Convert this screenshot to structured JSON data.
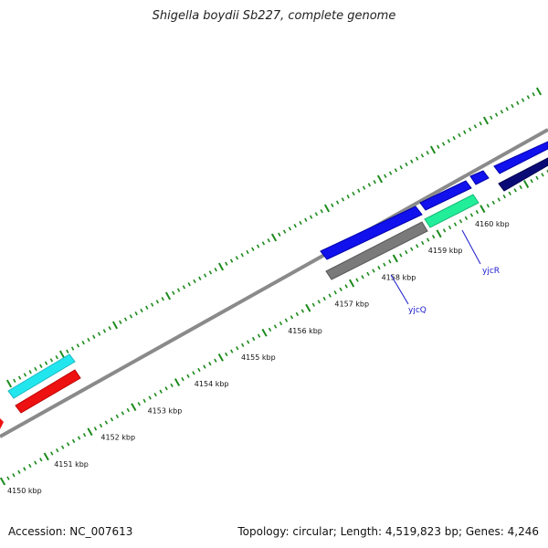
{
  "title": "Shigella boydii Sb227, complete genome",
  "footer": {
    "accession": "Accession: NC_007613",
    "topology": "Topology: circular; Length: 4,519,823 bp; Genes: 4,246"
  },
  "scale_labels": [
    "4150 kbp",
    "4151 kbp",
    "4152 kbp",
    "4153 kbp",
    "4154 kbp",
    "4155 kbp",
    "4156 kbp",
    "4157 kbp",
    "4158 kbp",
    "4159 kbp",
    "4160 kbp"
  ],
  "gene_labels": [
    "yjcQ",
    "yjcR"
  ],
  "colors": {
    "backbone": "#8a8a8a",
    "tick": "#1a8a1a",
    "cyan": "#22e6ee",
    "red": "#ee1111",
    "blue": "#1111ee",
    "gray": "#7a7a7a",
    "teal": "#22ee99",
    "navy": "#0a0a77",
    "label": "#1a1acc"
  }
}
